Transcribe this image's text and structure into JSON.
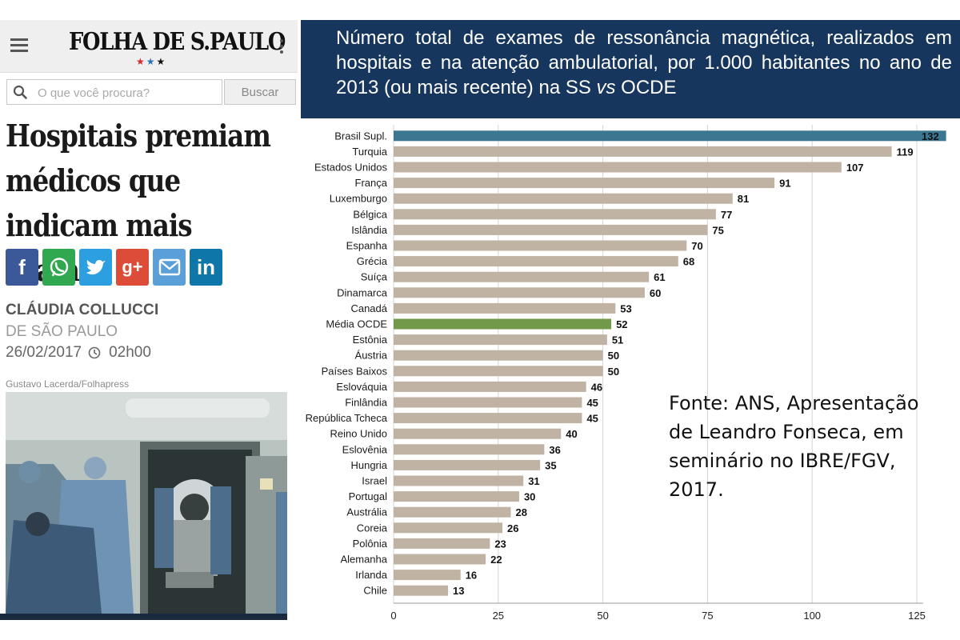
{
  "newspaper": {
    "logo": "FOLHA DE S.PAULO",
    "search_placeholder": "O que você procura?",
    "search_button": "Buscar",
    "headline": "Hospitais premiam médicos que indicam mais exames",
    "author": "CLÁUDIA COLLUCCI",
    "place": "DE SÃO PAULO",
    "date": "26/02/2017",
    "time": "02h00",
    "photo_credit": "Gustavo Lacerda/Folhapress",
    "share_buttons": [
      {
        "icon": "facebook-icon",
        "glyph": "f",
        "color": "#3b5998"
      },
      {
        "icon": "whatsapp-icon",
        "glyph": "",
        "color": "#2fa84f"
      },
      {
        "icon": "twitter-icon",
        "glyph": "",
        "color": "#2b9fe0"
      },
      {
        "icon": "googleplus-icon",
        "glyph": "g+",
        "color": "#dd4b39"
      },
      {
        "icon": "email-icon",
        "glyph": "",
        "color": "#5a9fd8"
      },
      {
        "icon": "linkedin-icon",
        "glyph": "in",
        "color": "#0e76a8"
      }
    ]
  },
  "chart_title": {
    "line1": "Número total de exames de ressonância magnética, realizados em hospitais e na atenção ambulatorial, por 1.000 habitantes no ano de 2013 (ou mais recente) na SS ",
    "vs": "vs",
    "line2": " OCDE"
  },
  "source_note": "Fonte: ANS, Apresentação de Leandro Fonseca, em seminário no IBRE/FGV, 2017.",
  "chart_data": {
    "type": "bar",
    "orientation": "horizontal",
    "categories": [
      "Brasil Supl.",
      "Turquia",
      "Estados Unidos",
      "França",
      "Luxemburgo",
      "Bélgica",
      "Islândia",
      "Espanha",
      "Grécia",
      "Suíça",
      "Dinamarca",
      "Canadá",
      "Média OCDE",
      "Estônia",
      "Áustria",
      "Países Baixos",
      "Eslováquia",
      "Finlândia",
      "República Tcheca",
      "Reino Unido",
      "Eslovênia",
      "Hungria",
      "Israel",
      "Portugal",
      "Austrália",
      "Coreia",
      "Polônia",
      "Alemanha",
      "Irlanda",
      "Chile"
    ],
    "values": [
      132,
      119,
      107,
      91,
      81,
      77,
      75,
      70,
      68,
      61,
      60,
      53,
      52,
      51,
      50,
      50,
      46,
      45,
      45,
      40,
      36,
      35,
      31,
      30,
      28,
      26,
      23,
      22,
      16,
      13
    ],
    "xlim": [
      0,
      125
    ],
    "xticks": [
      0,
      25,
      50,
      75,
      100,
      125
    ],
    "grid": "vertical",
    "colors": {
      "default": "#c0b3a3",
      "Brasil Supl.": "#3c7792",
      "Média OCDE": "#72994a"
    },
    "title": "",
    "xlabel": "",
    "ylabel": ""
  }
}
